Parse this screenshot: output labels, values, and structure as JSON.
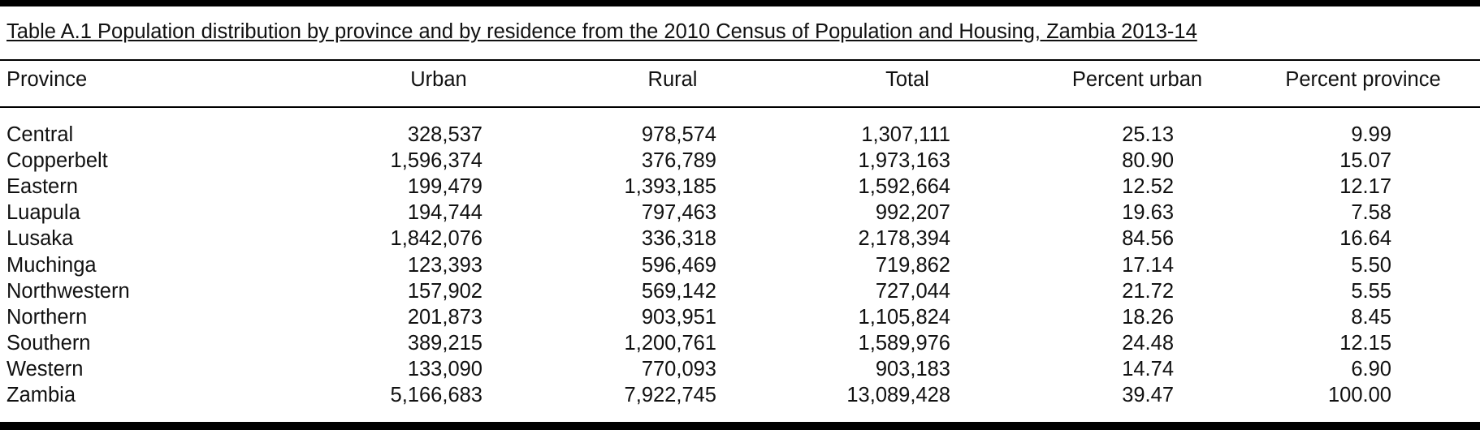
{
  "title": "Table A.1  Population distribution by province and by residence from the 2010 Census of Population and Housing, Zambia 2013-14",
  "columns": [
    "Province",
    "Urban",
    "Rural",
    "Total",
    "Percent urban",
    "Percent province"
  ],
  "rows": [
    [
      "Central",
      "328,537",
      "978,574",
      "1,307,111",
      "25.13",
      "9.99"
    ],
    [
      "Copperbelt",
      "1,596,374",
      "376,789",
      "1,973,163",
      "80.90",
      "15.07"
    ],
    [
      "Eastern",
      "199,479",
      "1,393,185",
      "1,592,664",
      "12.52",
      "12.17"
    ],
    [
      "Luapula",
      "194,744",
      "797,463",
      "992,207",
      "19.63",
      "7.58"
    ],
    [
      "Lusaka",
      "1,842,076",
      "336,318",
      "2,178,394",
      "84.56",
      "16.64"
    ],
    [
      "Muchinga",
      "123,393",
      "596,469",
      "719,862",
      "17.14",
      "5.50"
    ],
    [
      "Northwestern",
      "157,902",
      "569,142",
      "727,044",
      "21.72",
      "5.55"
    ],
    [
      "Northern",
      "201,873",
      "903,951",
      "1,105,824",
      "18.26",
      "8.45"
    ],
    [
      "Southern",
      "389,215",
      "1,200,761",
      "1,589,976",
      "24.48",
      "12.15"
    ],
    [
      "Western",
      "133,090",
      "770,093",
      "903,183",
      "14.74",
      "6.90"
    ],
    [
      "Zambia",
      "5,166,683",
      "7,922,745",
      "13,089,428",
      "39.47",
      "100.00"
    ]
  ]
}
